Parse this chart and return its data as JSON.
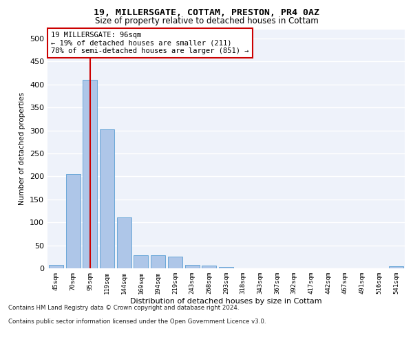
{
  "title1": "19, MILLERSGATE, COTTAM, PRESTON, PR4 0AZ",
  "title2": "Size of property relative to detached houses in Cottam",
  "xlabel": "Distribution of detached houses by size in Cottam",
  "ylabel": "Number of detached properties",
  "categories": [
    "45sqm",
    "70sqm",
    "95sqm",
    "119sqm",
    "144sqm",
    "169sqm",
    "194sqm",
    "219sqm",
    "243sqm",
    "268sqm",
    "293sqm",
    "318sqm",
    "343sqm",
    "367sqm",
    "392sqm",
    "417sqm",
    "442sqm",
    "467sqm",
    "491sqm",
    "516sqm",
    "541sqm"
  ],
  "values": [
    8,
    205,
    410,
    303,
    110,
    29,
    29,
    25,
    7,
    6,
    3,
    0,
    0,
    0,
    0,
    0,
    0,
    0,
    0,
    0,
    4
  ],
  "bar_color": "#aec6e8",
  "bar_edgecolor": "#5a9fd4",
  "vline_x": 2.0,
  "vline_color": "#cc0000",
  "annotation_text": "19 MILLERSGATE: 96sqm\n← 19% of detached houses are smaller (211)\n78% of semi-detached houses are larger (851) →",
  "annotation_box_color": "#ffffff",
  "annotation_box_edgecolor": "#cc0000",
  "footer_line1": "Contains HM Land Registry data © Crown copyright and database right 2024.",
  "footer_line2": "Contains public sector information licensed under the Open Government Licence v3.0.",
  "ylim": [
    0,
    520
  ],
  "yticks": [
    0,
    50,
    100,
    150,
    200,
    250,
    300,
    350,
    400,
    450,
    500
  ],
  "bg_color": "#eef2fa",
  "grid_color": "#ffffff"
}
